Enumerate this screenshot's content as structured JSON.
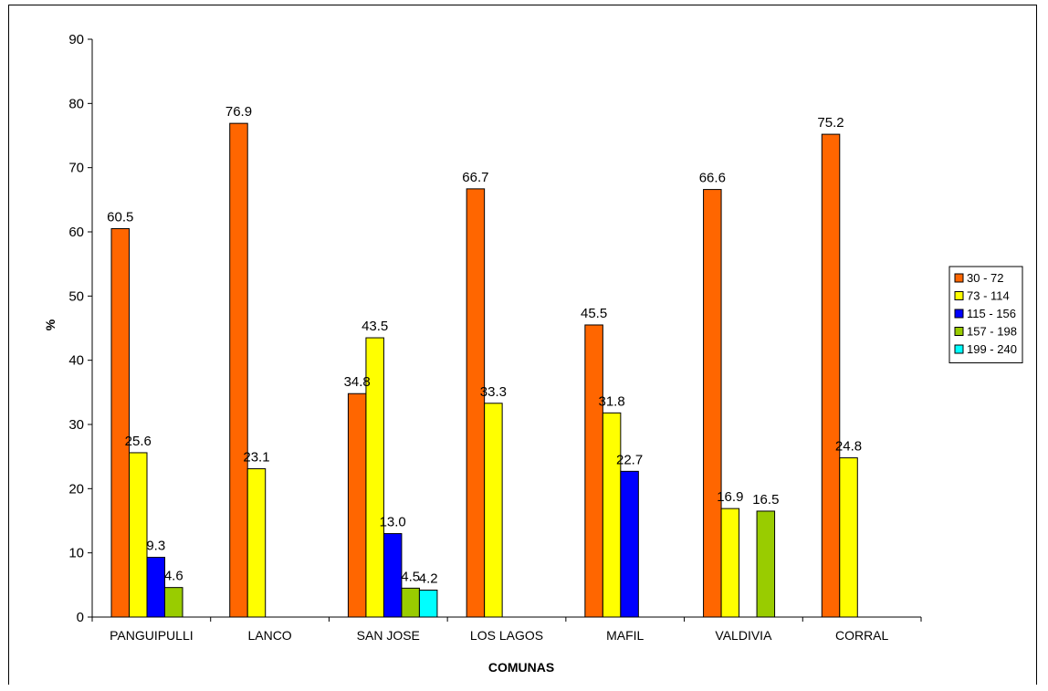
{
  "chart_data": {
    "type": "bar",
    "xlabel": "COMUNAS",
    "ylabel": "%",
    "ylim": [
      0,
      90
    ],
    "yticks": [
      0,
      10,
      20,
      30,
      40,
      50,
      60,
      70,
      80,
      90
    ],
    "grid": false,
    "legend_position": "right",
    "categories": [
      "PANGUIPULLI",
      "LANCO",
      "SAN JOSE",
      "LOS LAGOS",
      "MAFIL",
      "VALDIVIA",
      "CORRAL"
    ],
    "series": [
      {
        "name": "30 - 72",
        "color": "#FF6600",
        "values": [
          60.5,
          76.9,
          34.8,
          66.7,
          45.5,
          66.6,
          75.2
        ],
        "labels": [
          "60.5",
          "76.9",
          "34.8",
          "66.7",
          "45.5",
          "66.6",
          "75.2"
        ]
      },
      {
        "name": "73 - 114",
        "color": "#FFFF00",
        "values": [
          25.6,
          23.1,
          43.5,
          33.3,
          31.8,
          16.9,
          24.8
        ],
        "labels": [
          "25.6",
          "23.1",
          "43.5",
          "33.3",
          "31.8",
          "16.9",
          "24.8"
        ]
      },
      {
        "name": "115 - 156",
        "color": "#0000FF",
        "values": [
          9.3,
          null,
          13.0,
          null,
          22.7,
          null,
          null
        ],
        "labels": [
          "9.3",
          null,
          "13.0",
          null,
          "22.7",
          null,
          null
        ]
      },
      {
        "name": "157 - 198",
        "color": "#99CC00",
        "values": [
          4.6,
          null,
          4.5,
          null,
          null,
          16.5,
          null
        ],
        "labels": [
          "4.6",
          null,
          "4.5",
          null,
          null,
          "16.5",
          null
        ]
      },
      {
        "name": "199 - 240",
        "color": "#00FFFF",
        "values": [
          null,
          null,
          4.2,
          null,
          null,
          null,
          null
        ],
        "labels": [
          null,
          null,
          "4.2",
          null,
          null,
          null,
          null
        ]
      }
    ]
  }
}
